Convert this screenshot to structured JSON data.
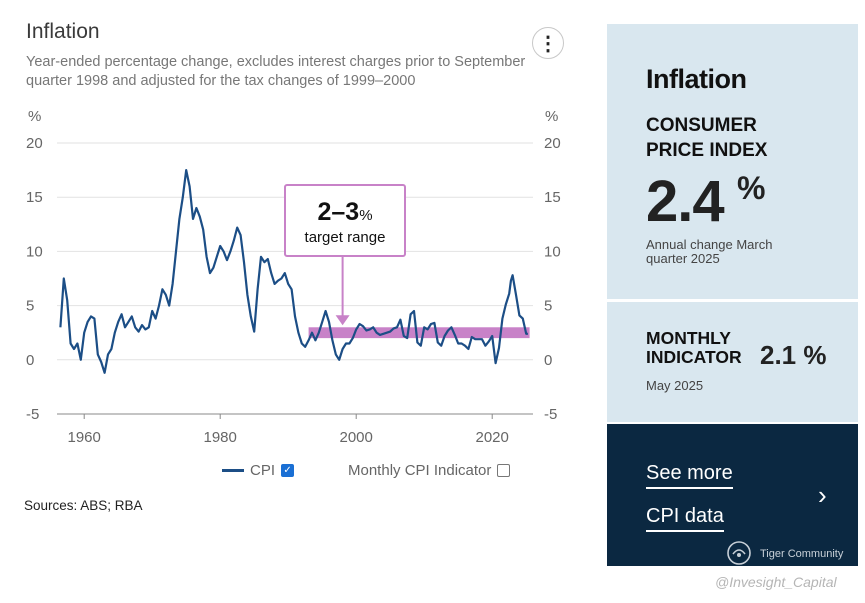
{
  "chart_data": {
    "type": "line",
    "title": "Inflation",
    "subtitle": "Year-ended percentage change, excludes interest charges prior to September quarter 1998 and adjusted for the tax changes of 1999–2000",
    "ylabel_left": "%",
    "ylabel_right": "%",
    "ylim": [
      -5,
      20
    ],
    "yticks": [
      "20",
      "15",
      "10",
      "5",
      "0",
      "-5"
    ],
    "xlim": [
      1956,
      2026
    ],
    "xticks": [
      "1960",
      "1980",
      "2000",
      "2020"
    ],
    "grid": true,
    "series": [
      {
        "name": "CPI",
        "color": "#1c4e86",
        "points": [
          [
            1956.5,
            3.0
          ],
          [
            1957,
            7.5
          ],
          [
            1957.5,
            5.5
          ],
          [
            1958,
            1.5
          ],
          [
            1958.5,
            1.0
          ],
          [
            1959,
            1.5
          ],
          [
            1959.5,
            0.0
          ],
          [
            1960,
            2.5
          ],
          [
            1960.5,
            3.5
          ],
          [
            1961,
            4.0
          ],
          [
            1961.5,
            3.8
          ],
          [
            1962,
            0.5
          ],
          [
            1962.5,
            -0.2
          ],
          [
            1963,
            -1.2
          ],
          [
            1963.5,
            0.5
          ],
          [
            1964,
            1.0
          ],
          [
            1964.5,
            2.5
          ],
          [
            1965,
            3.5
          ],
          [
            1965.5,
            4.2
          ],
          [
            1966,
            3.0
          ],
          [
            1966.5,
            3.5
          ],
          [
            1967,
            4.0
          ],
          [
            1967.5,
            3.0
          ],
          [
            1968,
            2.6
          ],
          [
            1968.5,
            3.2
          ],
          [
            1969,
            2.8
          ],
          [
            1969.5,
            3.0
          ],
          [
            1970,
            4.5
          ],
          [
            1970.5,
            3.8
          ],
          [
            1971,
            5.0
          ],
          [
            1971.5,
            6.5
          ],
          [
            1972,
            6.0
          ],
          [
            1972.5,
            5.0
          ],
          [
            1973,
            7.0
          ],
          [
            1973.5,
            10.0
          ],
          [
            1974,
            13.0
          ],
          [
            1974.5,
            15.0
          ],
          [
            1975,
            17.5
          ],
          [
            1975.5,
            16.0
          ],
          [
            1976,
            13.0
          ],
          [
            1976.5,
            14.0
          ],
          [
            1977,
            13.2
          ],
          [
            1977.5,
            12.0
          ],
          [
            1978,
            9.5
          ],
          [
            1978.5,
            8.0
          ],
          [
            1979,
            8.5
          ],
          [
            1979.5,
            9.5
          ],
          [
            1980,
            10.5
          ],
          [
            1980.5,
            10.0
          ],
          [
            1981,
            9.2
          ],
          [
            1981.5,
            10.0
          ],
          [
            1982,
            11.0
          ],
          [
            1982.5,
            12.2
          ],
          [
            1983,
            11.5
          ],
          [
            1983.5,
            9.0
          ],
          [
            1984,
            6.0
          ],
          [
            1984.5,
            4.0
          ],
          [
            1985,
            2.6
          ],
          [
            1985.5,
            6.5
          ],
          [
            1986,
            9.5
          ],
          [
            1986.5,
            9.0
          ],
          [
            1987,
            9.3
          ],
          [
            1987.5,
            8.0
          ],
          [
            1988,
            7.0
          ],
          [
            1988.5,
            7.3
          ],
          [
            1989,
            7.5
          ],
          [
            1989.5,
            8.0
          ],
          [
            1990,
            7.0
          ],
          [
            1990.5,
            6.5
          ],
          [
            1991,
            4.0
          ],
          [
            1991.5,
            2.5
          ],
          [
            1992,
            1.5
          ],
          [
            1992.5,
            1.2
          ],
          [
            1993,
            1.8
          ],
          [
            1993.5,
            2.5
          ],
          [
            1994,
            1.8
          ],
          [
            1994.5,
            2.5
          ],
          [
            1995,
            3.5
          ],
          [
            1995.5,
            4.5
          ],
          [
            1996,
            3.5
          ],
          [
            1996.5,
            1.8
          ],
          [
            1997,
            0.5
          ],
          [
            1997.5,
            0.0
          ],
          [
            1998,
            1.0
          ],
          [
            1998.5,
            1.5
          ],
          [
            1999,
            1.5
          ],
          [
            1999.5,
            2.0
          ],
          [
            2000,
            2.8
          ],
          [
            2000.5,
            3.3
          ],
          [
            2001,
            3.1
          ],
          [
            2001.5,
            2.7
          ],
          [
            2002,
            2.8
          ],
          [
            2002.5,
            3.0
          ],
          [
            2003,
            2.5
          ],
          [
            2003.5,
            2.3
          ],
          [
            2004,
            2.4
          ],
          [
            2004.5,
            2.5
          ],
          [
            2005,
            2.6
          ],
          [
            2005.5,
            2.9
          ],
          [
            2006,
            3.0
          ],
          [
            2006.5,
            3.7
          ],
          [
            2007,
            2.2
          ],
          [
            2007.5,
            2.0
          ],
          [
            2008,
            4.2
          ],
          [
            2008.5,
            4.5
          ],
          [
            2009,
            1.6
          ],
          [
            2009.5,
            1.3
          ],
          [
            2010,
            3.0
          ],
          [
            2010.5,
            2.8
          ],
          [
            2011,
            3.3
          ],
          [
            2011.5,
            3.4
          ],
          [
            2012,
            1.6
          ],
          [
            2012.5,
            1.3
          ],
          [
            2013,
            2.2
          ],
          [
            2013.5,
            2.7
          ],
          [
            2014,
            3.0
          ],
          [
            2014.5,
            2.3
          ],
          [
            2015,
            1.5
          ],
          [
            2015.5,
            1.5
          ],
          [
            2016,
            1.3
          ],
          [
            2016.5,
            1.0
          ],
          [
            2017,
            2.1
          ],
          [
            2017.5,
            1.9
          ],
          [
            2018,
            1.9
          ],
          [
            2018.5,
            1.9
          ],
          [
            2019,
            1.3
          ],
          [
            2019.5,
            1.7
          ],
          [
            2020,
            2.2
          ],
          [
            2020.5,
            -0.3
          ],
          [
            2021,
            1.1
          ],
          [
            2021.5,
            3.8
          ],
          [
            2022,
            5.1
          ],
          [
            2022.5,
            6.1
          ],
          [
            2022.75,
            7.3
          ],
          [
            2023,
            7.8
          ],
          [
            2023.5,
            6.0
          ],
          [
            2024,
            4.1
          ],
          [
            2024.5,
            3.8
          ],
          [
            2025,
            2.4
          ],
          [
            2025.25,
            2.4
          ]
        ]
      }
    ],
    "target_band": {
      "low": 2,
      "high": 3,
      "start": 1993,
      "end": 2025.5,
      "color": "#c882c8"
    },
    "annotation": {
      "big": "2–3",
      "big_unit": "%",
      "small": "target range",
      "pointer_x": 1998,
      "color": "#c882c8"
    },
    "legend": [
      {
        "label": "CPI",
        "checked": true
      },
      {
        "label": "Monthly CPI Indicator",
        "checked": false
      }
    ]
  },
  "sources": "Sources: ABS; RBA",
  "panel": {
    "title": "Inflation",
    "cpi_label": "CONSUMER PRICE INDEX",
    "cpi_value": "2.4",
    "cpi_unit": "%",
    "cpi_caption": "Annual change March quarter 2025",
    "monthly_label": "MONTHLY INDICATOR",
    "monthly_value": "2.1 %",
    "monthly_date": "May 2025",
    "link1": "See more",
    "link2": "CPI data",
    "chevron": "›"
  },
  "branding": {
    "community": "Tiger Community",
    "watermark": "@Invesight_Capital"
  }
}
